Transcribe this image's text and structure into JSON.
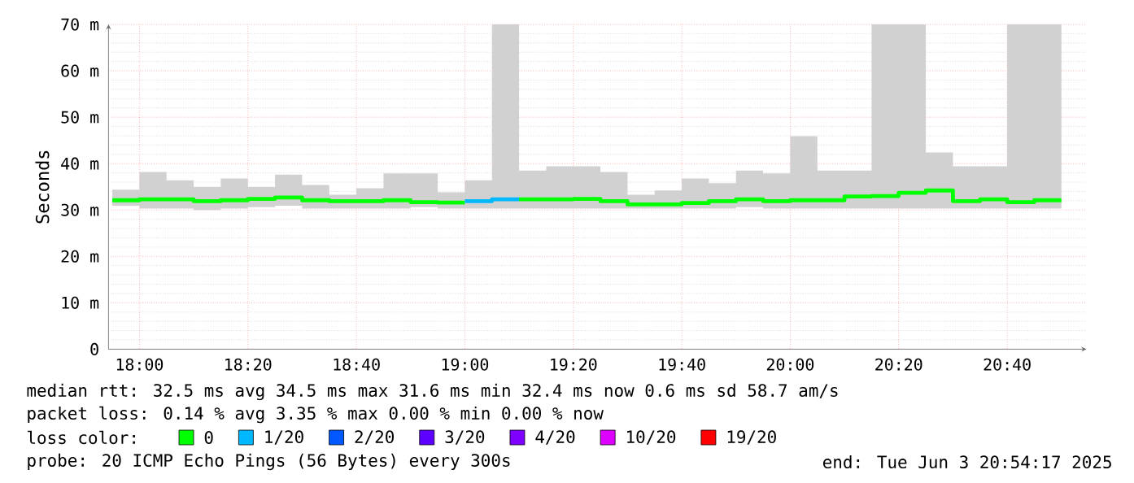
{
  "chart_data": {
    "type": "step",
    "ylabel": "Seconds",
    "legend_title": "loss color:",
    "annotations": [
      "median rtt:  32.5 ms avg  34.5 ms max  31.6 ms min  32.4 ms now  0.6 ms sd  58.7   am/s",
      "packet loss: 0.14 % avg  3.35 % max  0.00 % min  0.00 % now",
      "probe:        20 ICMP Echo Pings (56 Bytes) every 300s",
      "end: Tue Jun  3 20:54:17 2025"
    ],
    "x": [
      17.9167,
      18,
      18.0833,
      18.1667,
      18.25,
      18.3333,
      18.4167,
      18.5,
      18.5833,
      18.6667,
      18.75,
      18.8333,
      18.9167,
      19,
      19.0833,
      19.1667,
      19.25,
      19.3333,
      19.4167,
      19.5,
      19.5833,
      19.6667,
      19.75,
      19.8333,
      19.9167,
      20,
      20.0833,
      20.1667,
      20.25,
      20.3333,
      20.4167,
      20.5,
      20.5833,
      20.6667,
      20.75,
      20.8333
    ],
    "series": [
      {
        "name": "0",
        "color": "#00ff00",
        "values": [
          32.1,
          32.3,
          32.3,
          31.9,
          32.1,
          32.4,
          32.7,
          32.1,
          31.9,
          31.9,
          32.1,
          31.7,
          31.6,
          31.6,
          null,
          32.3,
          32.3,
          32.4,
          31.9,
          31.2,
          31.2,
          31.5,
          31.9,
          32.3,
          31.9,
          32.1,
          32.1,
          32.9,
          33.0,
          33.7,
          34.2,
          31.9,
          32.3,
          31.7,
          32.1,
          32.1
        ],
        "lower": [
          30.9,
          30.3,
          30.3,
          30.0,
          30.3,
          30.6,
          30.9,
          30.3,
          30.3,
          30.3,
          30.3,
          30.6,
          30.3,
          30.3,
          30.3,
          30.3,
          30.3,
          30.3,
          30.3,
          30.3,
          30.3,
          30.3,
          30.3,
          30.6,
          30.3,
          30.3,
          30.3,
          30.3,
          30.3,
          30.3,
          30.3,
          30.3,
          30.3,
          30.3,
          30.3,
          30.3
        ],
        "upper": [
          34.4,
          38.2,
          36.4,
          35.0,
          36.8,
          35.0,
          37.6,
          35.4,
          33.3,
          34.7,
          37.9,
          37.9,
          33.8,
          36.4,
          70,
          38.5,
          39.4,
          39.4,
          38.2,
          33.3,
          34.2,
          36.8,
          35.8,
          38.5,
          37.9,
          45.9,
          38.5,
          38.5,
          70,
          70,
          42.4,
          39.4,
          39.4,
          70,
          70,
          70
        ]
      },
      {
        "name": "1/20",
        "color": "#00b8ff",
        "values": [
          null,
          null,
          null,
          null,
          null,
          null,
          null,
          null,
          null,
          null,
          null,
          null,
          null,
          31.9,
          32.3,
          32.3,
          null,
          null,
          null,
          null,
          null,
          null,
          null,
          null,
          null,
          null,
          null,
          null,
          null,
          null,
          null,
          null,
          null,
          null,
          null,
          null
        ]
      },
      {
        "name": "2/20",
        "color": "#0059ff",
        "values": [
          null,
          null,
          null,
          null,
          null,
          null,
          null,
          null,
          null,
          null,
          null,
          null,
          null,
          null,
          null,
          null,
          null,
          null,
          null,
          null,
          null,
          null,
          null,
          null,
          null,
          null,
          null,
          null,
          null,
          null,
          null,
          null,
          null,
          null,
          null,
          null
        ]
      },
      {
        "name": "3/20",
        "color": "#5e00ff",
        "values": [
          null,
          null,
          null,
          null,
          null,
          null,
          null,
          null,
          null,
          null,
          null,
          null,
          null,
          null,
          null,
          null,
          null,
          null,
          null,
          null,
          null,
          null,
          null,
          null,
          null,
          null,
          null,
          null,
          null,
          null,
          null,
          null,
          null,
          null,
          null,
          null
        ]
      },
      {
        "name": "4/20",
        "color": "#7e00ff",
        "values": [
          null,
          null,
          null,
          null,
          null,
          null,
          null,
          null,
          null,
          null,
          null,
          null,
          null,
          null,
          null,
          null,
          null,
          null,
          null,
          null,
          null,
          null,
          null,
          null,
          null,
          null,
          null,
          null,
          null,
          null,
          null,
          null,
          null,
          null,
          null,
          null
        ]
      },
      {
        "name": "10/20",
        "color": "#dd00ff",
        "values": [
          null,
          null,
          null,
          null,
          null,
          null,
          null,
          null,
          null,
          null,
          null,
          null,
          null,
          null,
          null,
          null,
          null,
          null,
          null,
          null,
          null,
          null,
          null,
          null,
          null,
          null,
          null,
          null,
          null,
          null,
          null,
          null,
          null,
          null,
          null,
          null
        ]
      },
      {
        "name": "19/20",
        "color": "#ff0000",
        "values": [
          null,
          null,
          null,
          null,
          null,
          null,
          null,
          null,
          null,
          null,
          null,
          null,
          null,
          null,
          null,
          null,
          null,
          null,
          null,
          null,
          null,
          null,
          null,
          null,
          null,
          null,
          null,
          null,
          null,
          null,
          null,
          null,
          null,
          null,
          null,
          null
        ]
      }
    ],
    "xlim": [
      17.905,
      20.91
    ],
    "ylim": [
      0,
      70
    ],
    "xticks": [
      {
        "value": 18,
        "label": "18:00"
      },
      {
        "value": 18.3333,
        "label": "18:20"
      },
      {
        "value": 18.6667,
        "label": "18:40"
      },
      {
        "value": 19,
        "label": "19:00"
      },
      {
        "value": 19.3333,
        "label": "19:20"
      },
      {
        "value": 19.6667,
        "label": "19:40"
      },
      {
        "value": 20,
        "label": "20:00"
      },
      {
        "value": 20.3333,
        "label": "20:20"
      },
      {
        "value": 20.6667,
        "label": "20:40"
      }
    ],
    "yticks": [
      0,
      {
        "value": 10,
        "label": "10 m"
      },
      {
        "value": 20,
        "label": "20 m"
      },
      {
        "value": 30,
        "label": "30 m"
      },
      {
        "value": 40,
        "label": "40 m"
      },
      {
        "value": 50,
        "label": "50 m"
      },
      {
        "value": 60,
        "label": "60 m"
      },
      {
        "value": 70,
        "label": "70 m"
      }
    ],
    "grid": true,
    "legend": "bottom"
  }
}
